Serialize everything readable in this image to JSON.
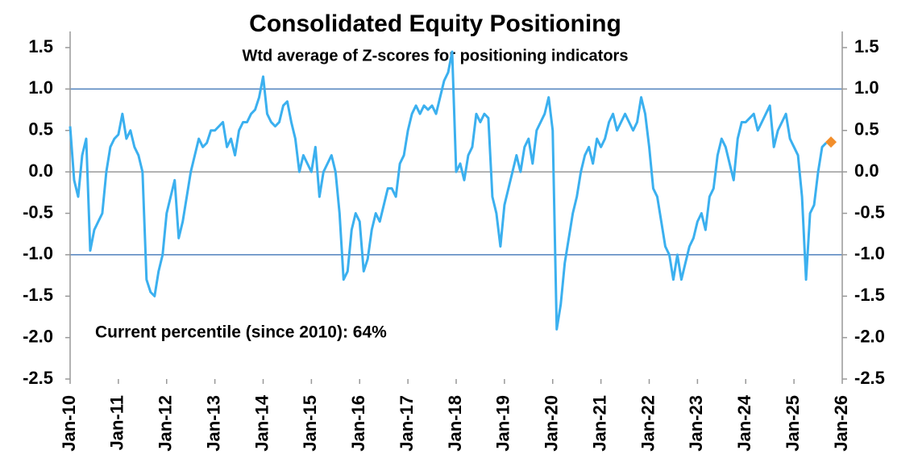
{
  "chart_data": {
    "type": "line",
    "title": "Consolidated Equity Positioning",
    "subtitle": "Wtd average of Z-scores for positioning indicators",
    "annotation": "Current percentile (since 2010): 64%",
    "x": [
      "2010-01",
      "2010-02",
      "2010-03",
      "2010-04",
      "2010-05",
      "2010-06",
      "2010-07",
      "2010-08",
      "2010-09",
      "2010-10",
      "2010-11",
      "2010-12",
      "2011-01",
      "2011-02",
      "2011-03",
      "2011-04",
      "2011-05",
      "2011-06",
      "2011-07",
      "2011-08",
      "2011-09",
      "2011-10",
      "2011-11",
      "2011-12",
      "2012-01",
      "2012-02",
      "2012-03",
      "2012-04",
      "2012-05",
      "2012-06",
      "2012-07",
      "2012-08",
      "2012-09",
      "2012-10",
      "2012-11",
      "2012-12",
      "2013-01",
      "2013-02",
      "2013-03",
      "2013-04",
      "2013-05",
      "2013-06",
      "2013-07",
      "2013-08",
      "2013-09",
      "2013-10",
      "2013-11",
      "2013-12",
      "2014-01",
      "2014-02",
      "2014-03",
      "2014-04",
      "2014-05",
      "2014-06",
      "2014-07",
      "2014-08",
      "2014-09",
      "2014-10",
      "2014-11",
      "2014-12",
      "2015-01",
      "2015-02",
      "2015-03",
      "2015-04",
      "2015-05",
      "2015-06",
      "2015-07",
      "2015-08",
      "2015-09",
      "2015-10",
      "2015-11",
      "2015-12",
      "2016-01",
      "2016-02",
      "2016-03",
      "2016-04",
      "2016-05",
      "2016-06",
      "2016-07",
      "2016-08",
      "2016-09",
      "2016-10",
      "2016-11",
      "2016-12",
      "2017-01",
      "2017-02",
      "2017-03",
      "2017-04",
      "2017-05",
      "2017-06",
      "2017-07",
      "2017-08",
      "2017-09",
      "2017-10",
      "2017-11",
      "2017-12",
      "2018-01",
      "2018-02",
      "2018-03",
      "2018-04",
      "2018-05",
      "2018-06",
      "2018-07",
      "2018-08",
      "2018-09",
      "2018-10",
      "2018-11",
      "2018-12",
      "2019-01",
      "2019-02",
      "2019-03",
      "2019-04",
      "2019-05",
      "2019-06",
      "2019-07",
      "2019-08",
      "2019-09",
      "2019-10",
      "2019-11",
      "2019-12",
      "2020-01",
      "2020-02",
      "2020-03",
      "2020-04",
      "2020-05",
      "2020-06",
      "2020-07",
      "2020-08",
      "2020-09",
      "2020-10",
      "2020-11",
      "2020-12",
      "2021-01",
      "2021-02",
      "2021-03",
      "2021-04",
      "2021-05",
      "2021-06",
      "2021-07",
      "2021-08",
      "2021-09",
      "2021-10",
      "2021-11",
      "2021-12",
      "2022-01",
      "2022-02",
      "2022-03",
      "2022-04",
      "2022-05",
      "2022-06",
      "2022-07",
      "2022-08",
      "2022-09",
      "2022-10",
      "2022-11",
      "2022-12",
      "2023-01",
      "2023-02",
      "2023-03",
      "2023-04",
      "2023-05",
      "2023-06",
      "2023-07",
      "2023-08",
      "2023-09",
      "2023-10",
      "2023-11",
      "2023-12",
      "2024-01",
      "2024-02",
      "2024-03",
      "2024-04",
      "2024-05",
      "2024-06",
      "2024-07",
      "2024-08",
      "2024-09",
      "2024-10",
      "2024-11",
      "2024-12",
      "2025-01",
      "2025-02",
      "2025-03",
      "2025-04",
      "2025-05",
      "2025-06",
      "2025-07",
      "2025-08",
      "2025-09"
    ],
    "series": [
      {
        "name": "Consolidated Equity Positioning",
        "color": "#3bb0ef",
        "values": [
          0.55,
          -0.1,
          -0.3,
          0.2,
          0.4,
          -0.95,
          -0.7,
          -0.6,
          -0.5,
          0.0,
          0.3,
          0.4,
          0.45,
          0.7,
          0.4,
          0.5,
          0.3,
          0.2,
          0.0,
          -1.3,
          -1.45,
          -1.5,
          -1.2,
          -1.0,
          -0.5,
          -0.3,
          -0.1,
          -0.8,
          -0.6,
          -0.3,
          0.0,
          0.2,
          0.4,
          0.3,
          0.35,
          0.5,
          0.5,
          0.55,
          0.6,
          0.3,
          0.4,
          0.2,
          0.5,
          0.6,
          0.6,
          0.7,
          0.75,
          0.9,
          1.15,
          0.7,
          0.6,
          0.55,
          0.6,
          0.8,
          0.85,
          0.6,
          0.4,
          0.0,
          0.2,
          0.1,
          0.0,
          0.3,
          -0.3,
          0.0,
          0.1,
          0.2,
          0.0,
          -0.5,
          -1.3,
          -1.2,
          -0.7,
          -0.5,
          -0.6,
          -1.2,
          -1.05,
          -0.7,
          -0.5,
          -0.6,
          -0.4,
          -0.2,
          -0.2,
          -0.3,
          0.1,
          0.2,
          0.5,
          0.7,
          0.8,
          0.7,
          0.8,
          0.75,
          0.8,
          0.7,
          0.9,
          1.1,
          1.2,
          1.45,
          0.0,
          0.1,
          -0.1,
          0.2,
          0.3,
          0.7,
          0.6,
          0.7,
          0.65,
          -0.3,
          -0.5,
          -0.9,
          -0.4,
          -0.2,
          0.0,
          0.2,
          0.0,
          0.3,
          0.4,
          0.1,
          0.5,
          0.6,
          0.7,
          0.9,
          0.5,
          -1.9,
          -1.6,
          -1.1,
          -0.8,
          -0.5,
          -0.3,
          0.0,
          0.2,
          0.3,
          0.1,
          0.4,
          0.3,
          0.4,
          0.6,
          0.7,
          0.5,
          0.6,
          0.7,
          0.6,
          0.5,
          0.6,
          0.9,
          0.7,
          0.3,
          -0.2,
          -0.3,
          -0.6,
          -0.9,
          -1.0,
          -1.3,
          -1.0,
          -1.3,
          -1.1,
          -0.9,
          -0.8,
          -0.6,
          -0.5,
          -0.7,
          -0.3,
          -0.2,
          0.2,
          0.4,
          0.3,
          0.1,
          -0.1,
          0.4,
          0.6,
          0.6,
          0.65,
          0.7,
          0.5,
          0.6,
          0.7,
          0.8,
          0.3,
          0.5,
          0.6,
          0.7,
          0.4,
          0.3,
          0.2,
          -0.3,
          -1.3,
          -0.5,
          -0.4,
          0.0,
          0.3,
          0.35
        ]
      }
    ],
    "marker": {
      "x": "2025-09",
      "value": 0.36,
      "color": "#f28e2b"
    },
    "hlines": [
      1.0,
      -1.0
    ],
    "hline_color": "#4f81bd",
    "xlim": [
      "2010-01",
      "2026-01"
    ],
    "xticks": [
      {
        "value": "2010-01",
        "label": "Jan-10"
      },
      {
        "value": "2011-01",
        "label": "Jan-11"
      },
      {
        "value": "2012-01",
        "label": "Jan-12"
      },
      {
        "value": "2013-01",
        "label": "Jan-13"
      },
      {
        "value": "2014-01",
        "label": "Jan-14"
      },
      {
        "value": "2015-01",
        "label": "Jan-15"
      },
      {
        "value": "2016-01",
        "label": "Jan-16"
      },
      {
        "value": "2017-01",
        "label": "Jan-17"
      },
      {
        "value": "2018-01",
        "label": "Jan-18"
      },
      {
        "value": "2019-01",
        "label": "Jan-19"
      },
      {
        "value": "2020-01",
        "label": "Jan-20"
      },
      {
        "value": "2021-01",
        "label": "Jan-21"
      },
      {
        "value": "2022-01",
        "label": "Jan-22"
      },
      {
        "value": "2023-01",
        "label": "Jan-23"
      },
      {
        "value": "2024-01",
        "label": "Jan-24"
      },
      {
        "value": "2025-01",
        "label": "Jan-25"
      },
      {
        "value": "2026-01",
        "label": "Jan-26"
      }
    ],
    "ylim": [
      -2.5,
      1.5
    ],
    "yticks": [
      {
        "value": 1.5,
        "label": "1.5"
      },
      {
        "value": 1,
        "label": "1.0"
      },
      {
        "value": 0.5,
        "label": "0.5"
      },
      {
        "value": 0,
        "label": "0.0"
      },
      {
        "value": -0.5,
        "label": "-0.5"
      },
      {
        "value": -1,
        "label": "-1.0"
      },
      {
        "value": -1.5,
        "label": "-1.5"
      },
      {
        "value": -2,
        "label": "-2.0"
      },
      {
        "value": -2.5,
        "label": "-2.5"
      }
    ],
    "y2lim": [
      -2.5,
      1.5
    ],
    "y2ticks": [
      {
        "value": 1.5,
        "label": "1.5"
      },
      {
        "value": 1,
        "label": "1.0"
      },
      {
        "value": 0.5,
        "label": "0.5"
      },
      {
        "value": 0,
        "label": "0.0"
      },
      {
        "value": -0.5,
        "label": "-0.5"
      },
      {
        "value": -1,
        "label": "-1.0"
      },
      {
        "value": -1.5,
        "label": "-1.5"
      },
      {
        "value": -2,
        "label": "-2.0"
      },
      {
        "value": -2.5,
        "label": "-2.5"
      }
    ]
  }
}
